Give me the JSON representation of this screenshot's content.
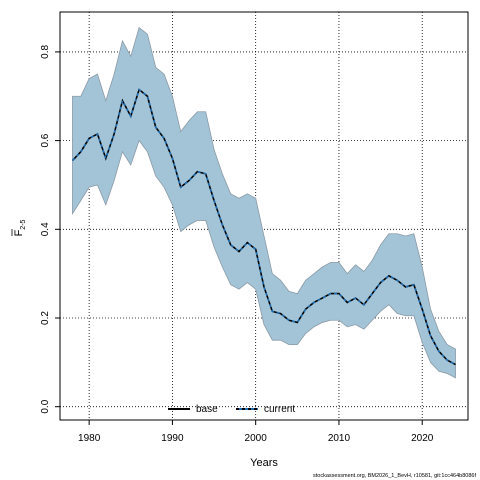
{
  "chart_data": {
    "type": "line",
    "xlabel": "Years",
    "ylabel_main": "F",
    "ylabel_sub": "2-5",
    "xlim": [
      1976.5,
      2025.5
    ],
    "ylim": [
      -0.03,
      0.89
    ],
    "xticks": [
      1980,
      1990,
      2000,
      2010,
      2020
    ],
    "yticks": [
      0.0,
      0.2,
      0.4,
      0.6,
      0.8
    ],
    "ytick_labels": [
      "0.0",
      "0.2",
      "0.4",
      "0.6",
      "0.8"
    ],
    "grid": true,
    "legend_placement": "bottom-center",
    "band_color": "#a3c4d6",
    "band_edge_color": "#8a9aa6",
    "years": [
      1978,
      1979,
      1980,
      1981,
      1982,
      1983,
      1984,
      1985,
      1986,
      1987,
      1988,
      1989,
      1990,
      1991,
      1992,
      1993,
      1994,
      1995,
      1996,
      1997,
      1998,
      1999,
      2000,
      2001,
      2002,
      2003,
      2004,
      2005,
      2006,
      2007,
      2008,
      2009,
      2010,
      2011,
      2012,
      2013,
      2014,
      2015,
      2016,
      2017,
      2018,
      2019,
      2020,
      2021,
      2022,
      2023,
      2024
    ],
    "series": [
      {
        "name": "base",
        "color": "#000000",
        "style": "solid",
        "values": [
          0.555,
          0.575,
          0.605,
          0.615,
          0.56,
          0.615,
          0.69,
          0.655,
          0.715,
          0.7,
          0.63,
          0.605,
          0.56,
          0.495,
          0.51,
          0.53,
          0.525,
          0.465,
          0.41,
          0.365,
          0.35,
          0.37,
          0.355,
          0.27,
          0.215,
          0.21,
          0.195,
          0.19,
          0.22,
          0.235,
          0.245,
          0.255,
          0.255,
          0.235,
          0.245,
          0.23,
          0.255,
          0.28,
          0.295,
          0.285,
          0.27,
          0.275,
          0.22,
          0.16,
          0.125,
          0.105,
          0.095
        ]
      },
      {
        "name": "current",
        "color": "#1f6fb5",
        "style": "dashed",
        "values": [
          0.555,
          0.575,
          0.605,
          0.615,
          0.56,
          0.615,
          0.69,
          0.655,
          0.715,
          0.7,
          0.63,
          0.605,
          0.56,
          0.495,
          0.51,
          0.53,
          0.525,
          0.465,
          0.41,
          0.365,
          0.35,
          0.37,
          0.355,
          0.27,
          0.215,
          0.21,
          0.195,
          0.19,
          0.22,
          0.235,
          0.245,
          0.255,
          0.255,
          0.235,
          0.245,
          0.23,
          0.255,
          0.28,
          0.295,
          0.285,
          0.27,
          0.275,
          0.22,
          0.16,
          0.125,
          0.105,
          0.095
        ]
      }
    ],
    "band": {
      "upper": [
        0.7,
        0.7,
        0.74,
        0.75,
        0.69,
        0.75,
        0.825,
        0.79,
        0.855,
        0.84,
        0.765,
        0.75,
        0.7,
        0.62,
        0.645,
        0.665,
        0.665,
        0.58,
        0.525,
        0.48,
        0.47,
        0.48,
        0.47,
        0.385,
        0.3,
        0.285,
        0.26,
        0.255,
        0.285,
        0.3,
        0.315,
        0.325,
        0.325,
        0.3,
        0.32,
        0.305,
        0.33,
        0.365,
        0.39,
        0.39,
        0.385,
        0.39,
        0.315,
        0.22,
        0.17,
        0.14,
        0.13
      ],
      "lower": [
        0.435,
        0.465,
        0.495,
        0.5,
        0.455,
        0.51,
        0.575,
        0.545,
        0.6,
        0.575,
        0.52,
        0.495,
        0.455,
        0.395,
        0.41,
        0.42,
        0.42,
        0.36,
        0.315,
        0.275,
        0.265,
        0.28,
        0.265,
        0.185,
        0.15,
        0.15,
        0.14,
        0.14,
        0.165,
        0.18,
        0.19,
        0.195,
        0.195,
        0.18,
        0.185,
        0.175,
        0.195,
        0.215,
        0.23,
        0.21,
        0.205,
        0.205,
        0.145,
        0.1,
        0.08,
        0.075,
        0.065
      ]
    },
    "footer": "stockassessment.org, BM2026_1_BevH, r10581, git:1cc464b8086f"
  }
}
